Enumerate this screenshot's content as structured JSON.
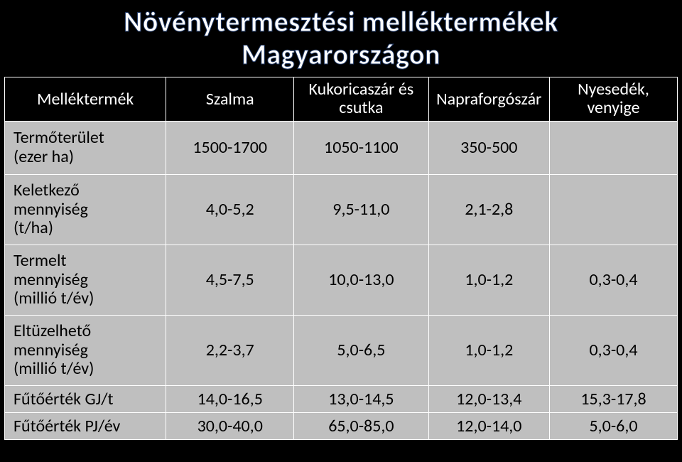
{
  "title": {
    "line1": "Növénytermesztési melléktermékek",
    "line2": "Magyarországon"
  },
  "table": {
    "columns": [
      "Melléktermék",
      "Szalma",
      "Kukoricaszár és csutka",
      "Napraforgószár",
      "Nyesedék, venyige"
    ],
    "rows": [
      {
        "label": "Termőterület (ezer ha)",
        "cells": [
          "1500-1700",
          "1050-1100",
          "350-500",
          ""
        ]
      },
      {
        "label": "Keletkező mennyiség (t/ha)",
        "cells": [
          "4,0-5,2",
          "9,5-11,0",
          "2,1-2,8",
          ""
        ]
      },
      {
        "label": "Termelt mennyiség (millió t/év)",
        "cells": [
          "4,5-7,5",
          "10,0-13,0",
          "1,0-1,2",
          "0,3-0,4"
        ]
      },
      {
        "label": "Eltüzelhető mennyiség (millió t/év)",
        "cells": [
          "2,2-3,7",
          "5,0-6,5",
          "1,0-1,2",
          "0,3-0,4"
        ]
      },
      {
        "label": "Fűtőérték GJ/t",
        "cells": [
          "14,0-16,5",
          "13,0-14,5",
          "12,0-13,4",
          "15,3-17,8"
        ]
      },
      {
        "label": "Fűtőérték PJ/év",
        "cells": [
          "30,0-40,0",
          "65,0-85,0",
          "12,0-14,0",
          "5,0-6,0"
        ]
      }
    ],
    "multiline_labels": {
      "0": [
        "Termőterület",
        "(ezer ha)"
      ],
      "1": [
        "Keletkező",
        "mennyiség",
        "(t/ha)"
      ],
      "2": [
        "Termelt",
        "mennyiség",
        "(millió t/év)"
      ],
      "3": [
        "Eltüzelhető",
        "mennyiség",
        "(millió t/év)"
      ]
    },
    "header_multiline": {
      "2": [
        "Kukoricaszár és",
        "csutka"
      ],
      "4": [
        "Nyesedék,",
        "venyige"
      ]
    }
  },
  "styling": {
    "background": "#000000",
    "cell_background": "#bfbfbf",
    "border_color": "#ffffff",
    "header_text_color": "#ffffff",
    "cell_text_color": "#000000",
    "title_fill": "#ffffff",
    "title_stroke": "#203864",
    "title_fontsize_pt": 32,
    "cell_fontsize_pt": 18,
    "font_family": "Calibri"
  }
}
